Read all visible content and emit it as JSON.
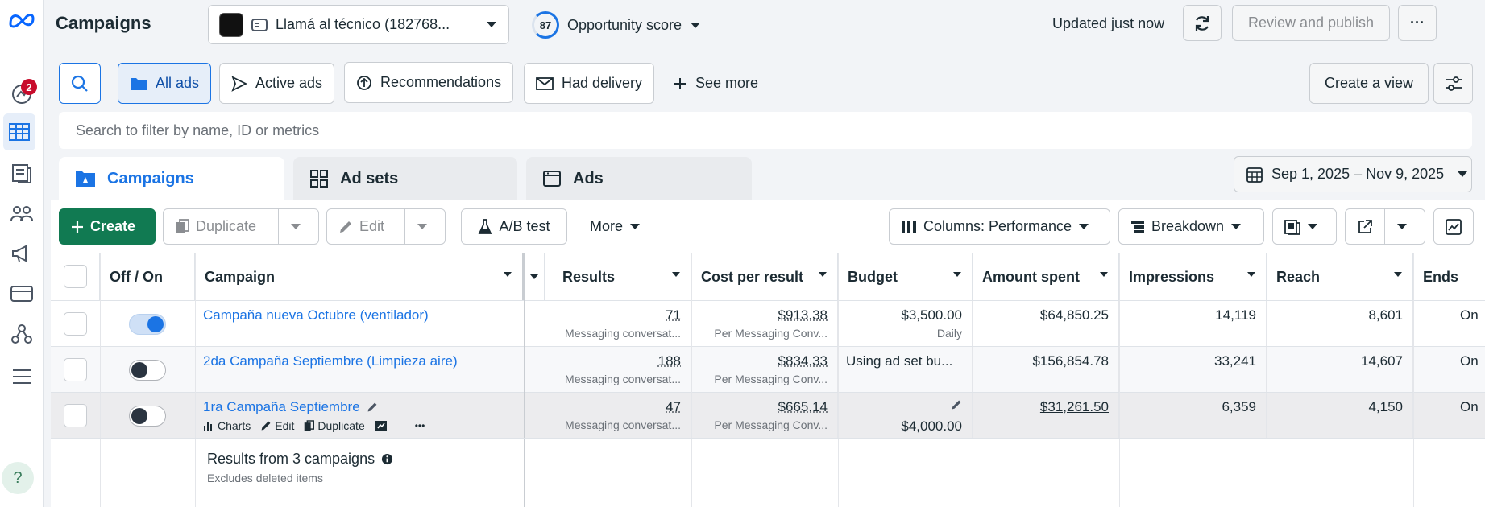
{
  "header": {
    "title": "Campaigns",
    "account_name": "Llamá al técnico (182768...",
    "opportunity_score_value": "87",
    "opportunity_score_label": "Opportunity score",
    "updated": "Updated just now",
    "review_publish": "Review and publish",
    "more_glyph": "···"
  },
  "rail": {
    "notifications_count": "2",
    "help_glyph": "?"
  },
  "filters": {
    "chips": [
      "All ads",
      "Active ads",
      "Recommendations",
      "Had delivery"
    ],
    "see_more": "See more",
    "create_view": "Create a view",
    "search_placeholder": "Search to filter by name, ID or metrics"
  },
  "level_tabs": [
    "Campaigns",
    "Ad sets",
    "Ads"
  ],
  "date_range": "Sep 1, 2025 – Nov 9, 2025",
  "toolbar": {
    "create": "Create",
    "duplicate": "Duplicate",
    "edit": "Edit",
    "ab_test": "A/B test",
    "more": "More",
    "columns": "Columns: Performance",
    "breakdown": "Breakdown"
  },
  "table": {
    "headers": {
      "off_on": "Off / On",
      "campaign": "Campaign",
      "results": "Results",
      "cost_per_result": "Cost per result",
      "budget": "Budget",
      "amount_spent": "Amount spent",
      "impressions": "Impressions",
      "reach": "Reach",
      "ends": "Ends"
    },
    "rows": [
      {
        "on": true,
        "name": "Campaña nueva Octubre (ventilador)",
        "results": "71",
        "results_sub": "Messaging conversat...",
        "cost": "$913.38",
        "cost_sub": "Per Messaging Conv...",
        "budget": "$3,500.00",
        "budget_sub": "Daily",
        "spent": "$64,850.25",
        "impressions": "14,119",
        "reach": "8,601",
        "ends": "On"
      },
      {
        "on": false,
        "name": "2da Campaña Septiembre (Limpieza aire)",
        "results": "188",
        "results_sub": "Messaging conversat...",
        "cost": "$834.33",
        "cost_sub": "Per Messaging Conv...",
        "budget": "Using ad set bu...",
        "budget_sub": "",
        "spent": "$156,854.78",
        "impressions": "33,241",
        "reach": "14,607",
        "ends": "On"
      },
      {
        "on": false,
        "name": "1ra Campaña Septiembre",
        "results": "47",
        "results_sub": "Messaging conversat...",
        "cost": "$665.14",
        "cost_sub": "Per Messaging Conv...",
        "budget": "$4,000.00",
        "budget_sub": "",
        "spent": "$31,261.50",
        "impressions": "6,359",
        "reach": "4,150",
        "ends": "On"
      }
    ],
    "row_actions": {
      "charts": "Charts",
      "edit": "Edit",
      "duplicate": "Duplicate",
      "more": "•••"
    },
    "footer_title": "Results from 3 campaigns",
    "footer_sub": "Excludes deleted items"
  },
  "colors": {
    "accent": "#1b74e4",
    "create": "#117a52",
    "badge": "#c80c2c"
  }
}
